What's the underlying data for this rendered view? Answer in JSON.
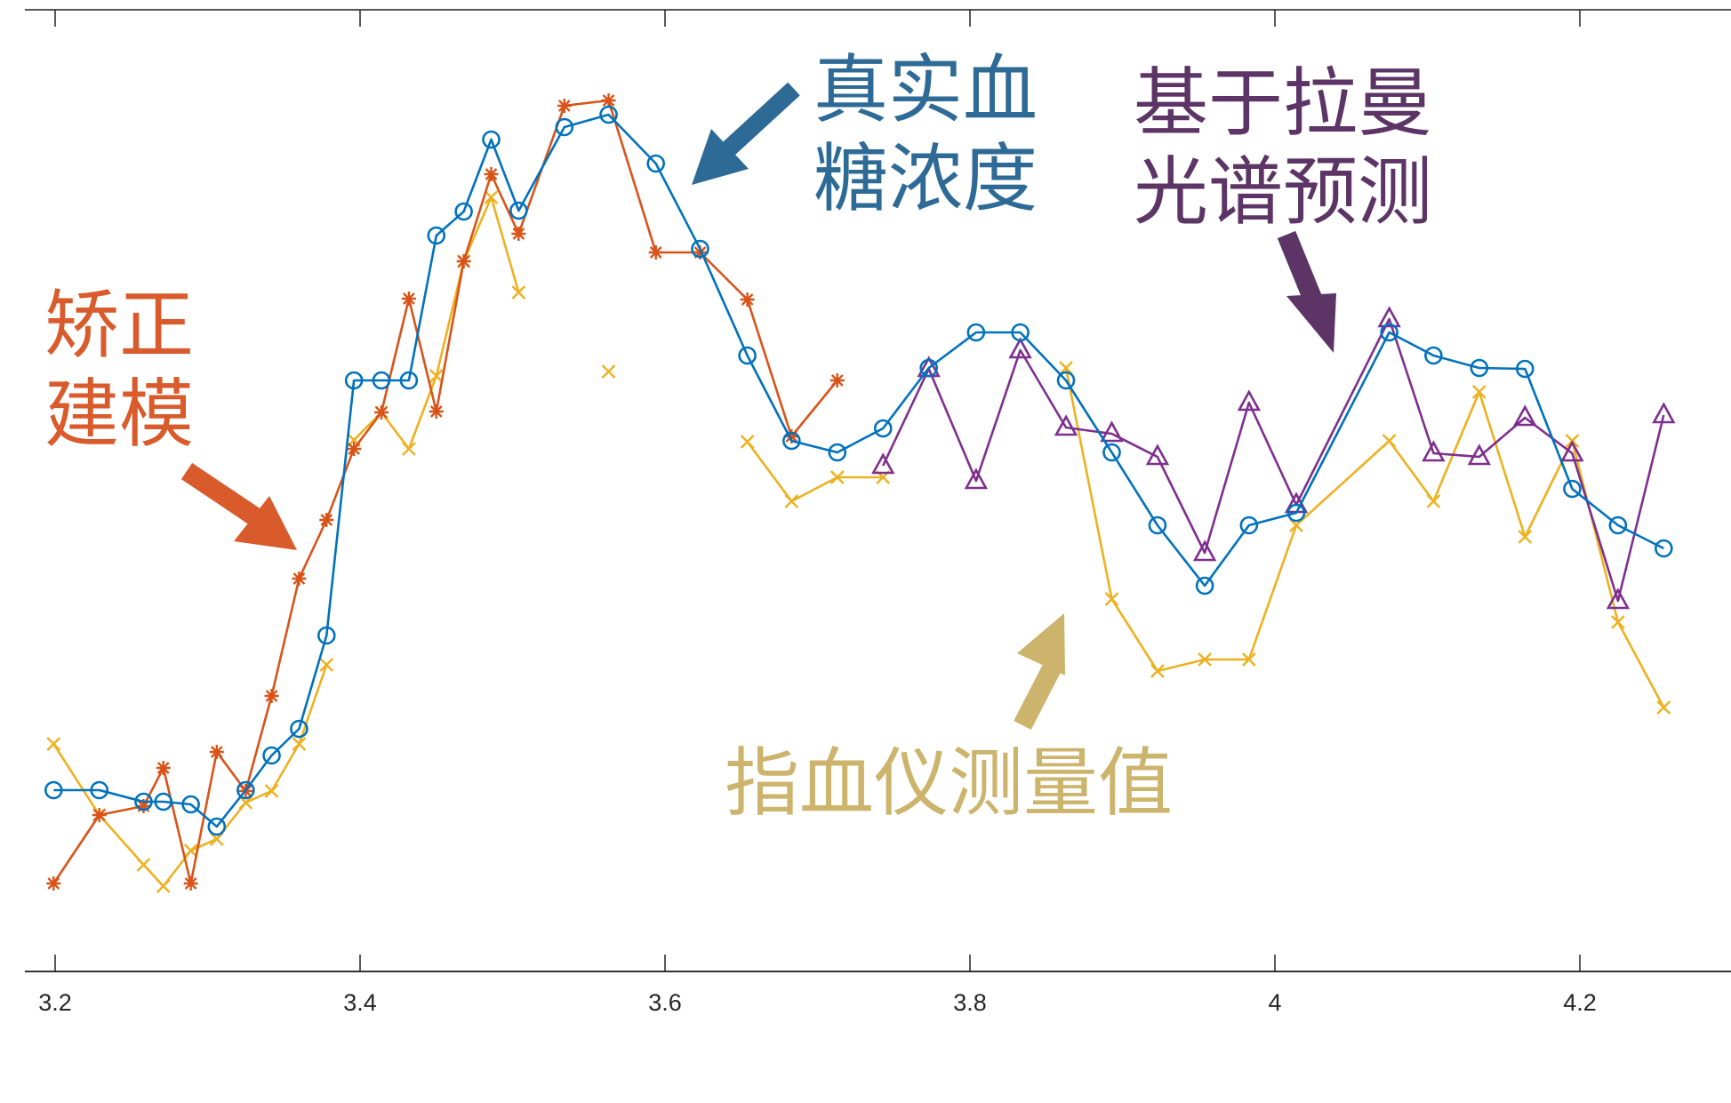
{
  "chart_data": {
    "type": "line",
    "title": "",
    "xlabel": "",
    "ylabel": "",
    "xlim": [
      3.2,
      4.28
    ],
    "x_ticks": [
      3.2,
      3.4,
      3.6,
      3.8,
      4.0,
      4.2
    ],
    "x_tick_labels": [
      "3.2",
      "3.4",
      "3.6",
      "3.8",
      "4",
      "4.2"
    ],
    "y_axis_visible": false,
    "y_units_note": "relative level (no y-axis shown; values read as pixel height above x-axis /10)",
    "grid": false,
    "legend": "none (inline annotations with arrows)",
    "series": [
      {
        "name": "真实血糖浓度",
        "color": "#0072bd",
        "marker": "circle",
        "points": [
          [
            3.199,
            20.4
          ],
          [
            3.229,
            20.4
          ],
          [
            3.258,
            19.1
          ],
          [
            3.271,
            19.1
          ],
          [
            3.289,
            18.8
          ],
          [
            3.306,
            16.3
          ],
          [
            3.325,
            20.4
          ],
          [
            3.342,
            24.3
          ],
          [
            3.36,
            27.3
          ],
          [
            3.378,
            37.8
          ],
          [
            3.396,
            66.5
          ],
          [
            3.414,
            66.5
          ],
          [
            3.432,
            66.5
          ],
          [
            3.45,
            82.8
          ],
          [
            3.468,
            85.5
          ],
          [
            3.486,
            93.6
          ],
          [
            3.504,
            85.6
          ],
          [
            3.534,
            95.0
          ],
          [
            3.563,
            96.4
          ],
          [
            3.594,
            90.9
          ],
          [
            3.623,
            81.3
          ],
          [
            3.654,
            69.3
          ],
          [
            3.683,
            59.7
          ],
          [
            3.713,
            58.4
          ],
          [
            3.743,
            61.1
          ],
          [
            3.773,
            67.9
          ],
          [
            3.804,
            71.9
          ],
          [
            3.833,
            71.9
          ],
          [
            3.863,
            66.5
          ],
          [
            3.893,
            58.4
          ],
          [
            3.923,
            50.2
          ],
          [
            3.954,
            43.4
          ],
          [
            3.983,
            50.2
          ],
          [
            4.014,
            51.6
          ],
          [
            4.075,
            71.9
          ],
          [
            4.104,
            69.3
          ],
          [
            4.134,
            67.9
          ],
          [
            4.164,
            67.8
          ],
          [
            4.195,
            54.3
          ],
          [
            4.225,
            50.2
          ],
          [
            4.255,
            47.6
          ]
        ]
      },
      {
        "name": "矫正建模",
        "color": "#d95319",
        "marker": "asterisk",
        "points": [
          [
            3.199,
            9.9
          ],
          [
            3.229,
            17.6
          ],
          [
            3.258,
            18.6
          ],
          [
            3.271,
            22.9
          ],
          [
            3.289,
            9.9
          ],
          [
            3.306,
            24.7
          ],
          [
            3.325,
            20.3
          ],
          [
            3.342,
            31.0
          ],
          [
            3.36,
            44.2
          ],
          [
            3.378,
            50.8
          ],
          [
            3.396,
            58.8
          ],
          [
            3.414,
            62.9
          ],
          [
            3.432,
            75.7
          ],
          [
            3.45,
            63.0
          ],
          [
            3.468,
            79.9
          ],
          [
            3.486,
            89.7
          ],
          [
            3.504,
            83.0
          ],
          [
            3.534,
            97.4
          ],
          [
            3.563,
            98.0
          ],
          [
            3.594,
            80.9
          ],
          [
            3.623,
            80.9
          ],
          [
            3.654,
            75.6
          ],
          [
            3.683,
            60.2
          ],
          [
            3.713,
            66.5
          ]
        ]
      },
      {
        "name": "指血仪测量值",
        "color": "#edb120",
        "marker": "x",
        "segments": [
          [
            [
              3.199,
              25.6
            ],
            [
              3.229,
              17.6
            ],
            [
              3.258,
              12.0
            ],
            [
              3.271,
              9.6
            ],
            [
              3.289,
              13.6
            ],
            [
              3.306,
              14.9
            ],
            [
              3.325,
              19.0
            ],
            [
              3.342,
              20.3
            ],
            [
              3.36,
              25.6
            ],
            [
              3.378,
              34.5
            ]
          ],
          [
            [
              3.396,
              59.8
            ],
            [
              3.414,
              62.9
            ],
            [
              3.432,
              58.8
            ],
            [
              3.45,
              67.0
            ],
            [
              3.468,
              79.9
            ],
            [
              3.486,
              87.1
            ],
            [
              3.504,
              76.4
            ]
          ],
          [
            [
              3.563,
              67.5
            ]
          ],
          [
            [
              3.654,
              59.6
            ],
            [
              3.683,
              52.9
            ],
            [
              3.713,
              55.6
            ],
            [
              3.743,
              55.6
            ]
          ],
          [
            [
              3.863,
              67.9
            ],
            [
              3.893,
              41.9
            ],
            [
              3.923,
              33.8
            ],
            [
              3.954,
              35.1
            ],
            [
              3.983,
              35.1
            ],
            [
              4.014,
              50.2
            ],
            [
              4.075,
              59.7
            ],
            [
              4.104,
              52.9
            ],
            [
              4.134,
              65.2
            ],
            [
              4.164,
              48.9
            ],
            [
              4.195,
              59.7
            ],
            [
              4.225,
              39.3
            ],
            [
              4.255,
              29.7
            ]
          ]
        ]
      },
      {
        "name": "基于拉曼光谱预测",
        "color": "#7e2f8e",
        "marker": "triangle",
        "points": [
          [
            3.743,
            56.9
          ],
          [
            3.773,
            67.8
          ],
          [
            3.804,
            55.2
          ],
          [
            3.833,
            69.9
          ],
          [
            3.863,
            61.2
          ],
          [
            3.893,
            60.5
          ],
          [
            3.923,
            57.9
          ],
          [
            3.954,
            47.1
          ],
          [
            3.983,
            64.0
          ],
          [
            4.014,
            52.5
          ],
          [
            4.075,
            73.4
          ],
          [
            4.104,
            58.3
          ],
          [
            4.134,
            57.9
          ],
          [
            4.164,
            62.3
          ],
          [
            4.195,
            58.3
          ],
          [
            4.225,
            41.7
          ],
          [
            4.255,
            62.6
          ]
        ]
      }
    ],
    "annotations": [
      {
        "text_lines": [
          "真实血",
          "糖浓度"
        ],
        "color": "#2e6a96"
      },
      {
        "text_lines": [
          "基于拉曼",
          "光谱预测"
        ],
        "color": "#5c3566"
      },
      {
        "text_lines": [
          "矫正",
          "建模"
        ],
        "color": "#d95a2b"
      },
      {
        "text_lines": [
          "指血仪测量值"
        ],
        "color": "#cdb46c"
      }
    ]
  },
  "labels": {
    "true_glucose_l1": "真实血",
    "true_glucose_l2": "糖浓度",
    "raman_l1": "基于拉曼",
    "raman_l2": "光谱预测",
    "correction_l1": "矫正",
    "correction_l2": "建模",
    "meter": "指血仪测量值"
  },
  "axis": {
    "t0": "3.2",
    "t1": "3.4",
    "t2": "3.6",
    "t3": "3.8",
    "t4": "4",
    "t5": "4.2"
  }
}
